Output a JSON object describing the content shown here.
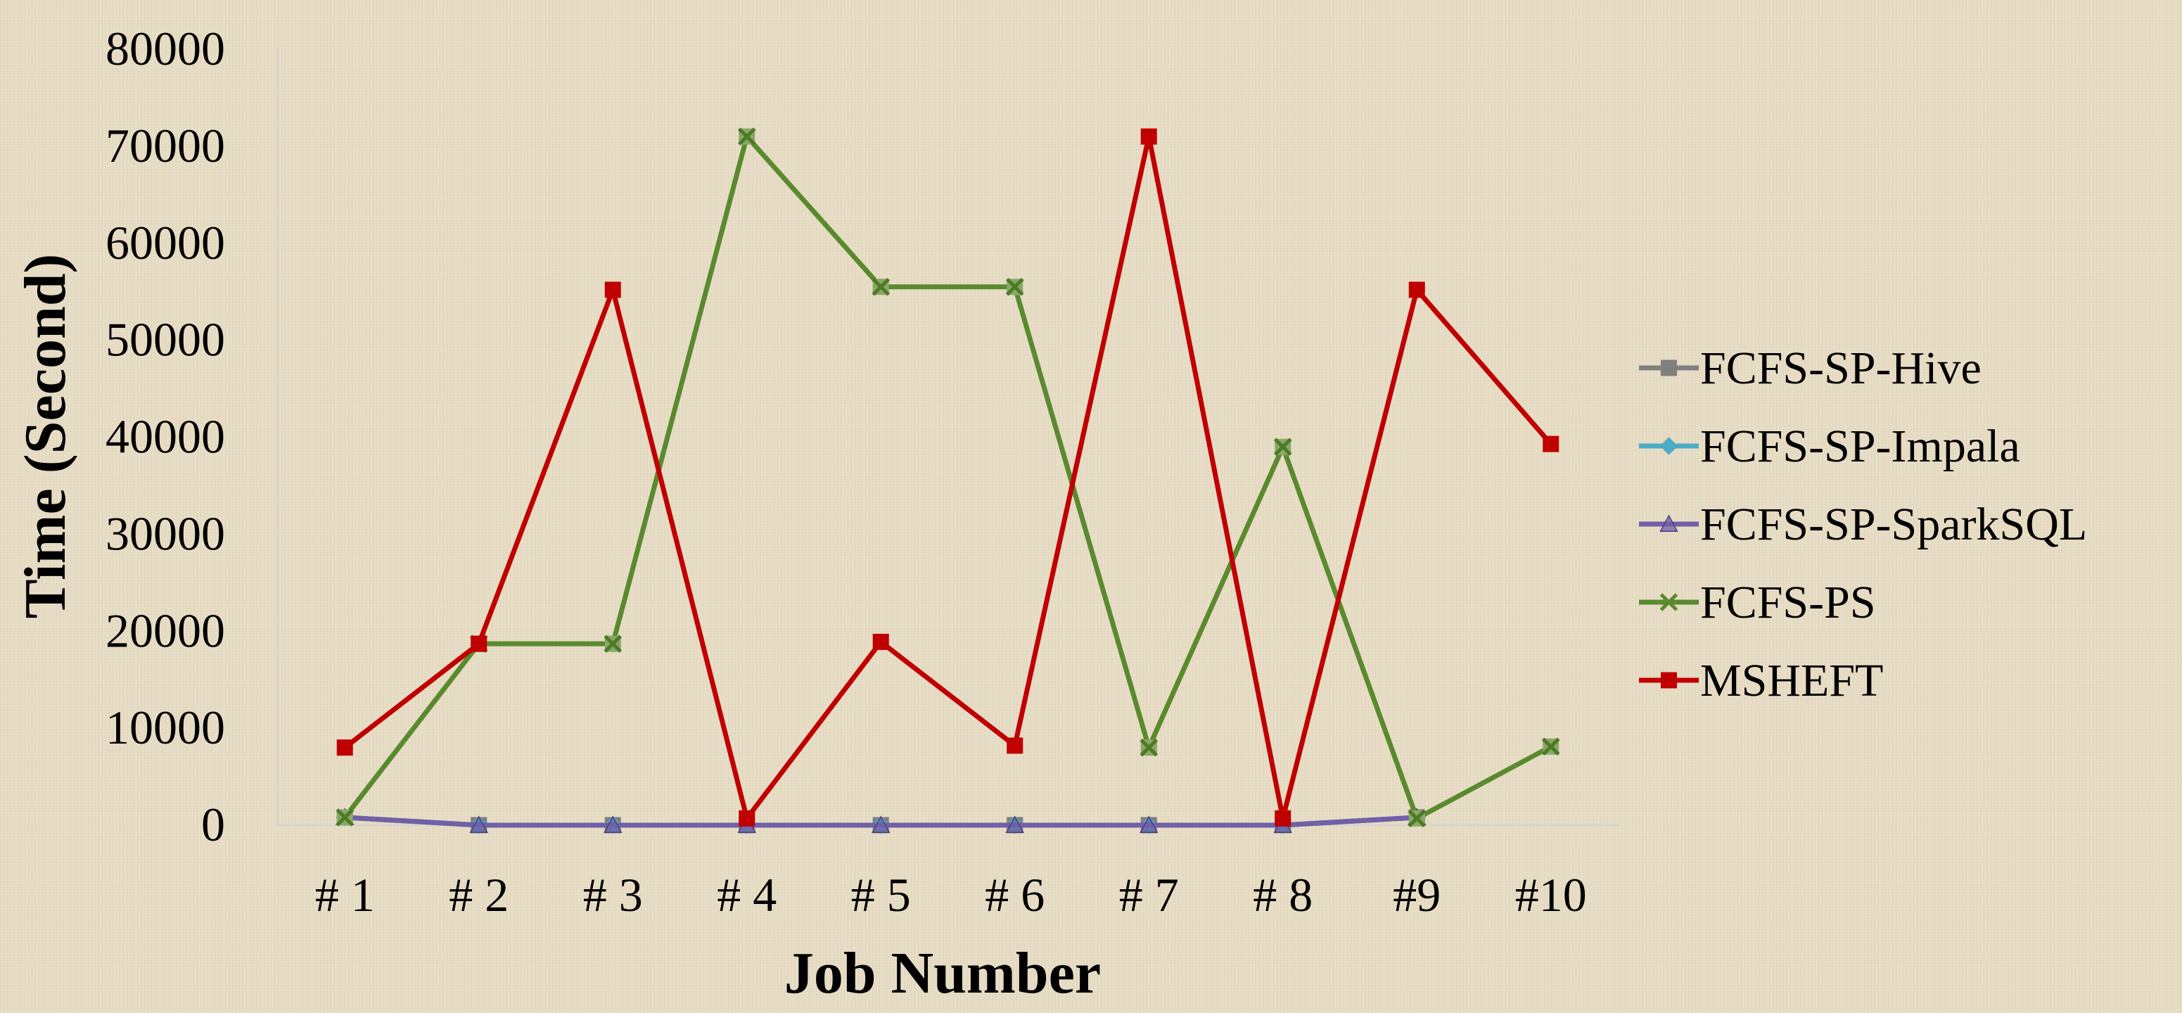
{
  "chart_data": {
    "type": "line",
    "title": "",
    "xlabel": "Job Number",
    "ylabel": "Time (Second)",
    "ylim": [
      0,
      80000
    ],
    "yticks": [
      "0",
      "10000",
      "20000",
      "30000",
      "40000",
      "50000",
      "60000",
      "70000",
      "80000"
    ],
    "categories": [
      "# 1",
      "# 2",
      "# 3",
      "# 4",
      "# 5",
      "# 6",
      "# 7",
      "# 8",
      "#9",
      "#10"
    ],
    "legend_position": "right",
    "grid": false,
    "series": [
      {
        "name": "FCFS-SP-Hive",
        "color": "#7f7f7f",
        "marker": "square",
        "values": [
          800,
          0,
          0,
          0,
          0,
          0,
          0,
          0,
          800,
          null
        ]
      },
      {
        "name": "FCFS-SP-Impala",
        "color": "#4bacc6",
        "marker": "diamond",
        "values": [
          800,
          0,
          0,
          0,
          0,
          0,
          0,
          0,
          800,
          null
        ]
      },
      {
        "name": "FCFS-SP-SparkSQL",
        "color": "#7060a8",
        "marker": "triangle",
        "values": [
          800,
          0,
          0,
          0,
          0,
          0,
          0,
          0,
          800,
          null
        ]
      },
      {
        "name": "FCFS-PS",
        "color": "#5a8a2e",
        "marker": "x",
        "values": [
          800,
          18700,
          18700,
          71000,
          55500,
          55500,
          8000,
          39000,
          700,
          8100
        ]
      },
      {
        "name": "MSHEFT",
        "color": "#c00000",
        "marker": "square",
        "values": [
          8000,
          18700,
          55200,
          700,
          18900,
          8200,
          71000,
          700,
          55200,
          39300
        ]
      }
    ]
  }
}
